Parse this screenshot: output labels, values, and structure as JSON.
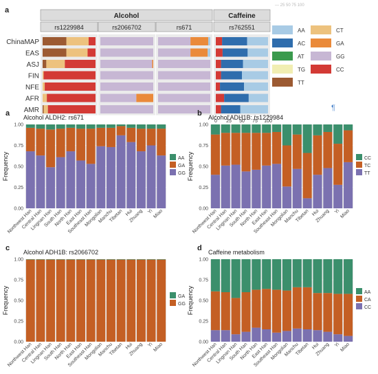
{
  "figure": {
    "top_panel": {
      "panel_letter": "a",
      "groups": [
        {
          "title": "Alcohol",
          "snps": [
            "rs1229984",
            "rs2066702",
            "rs671"
          ]
        },
        {
          "title": "Caffeine",
          "snps": [
            "rs762551"
          ]
        }
      ],
      "populations": [
        "ChinaMAP",
        "EAS",
        "ASJ",
        "FIN",
        "NFE",
        "AFR",
        "AMR"
      ],
      "x_ticks": [
        "0",
        "25",
        "50",
        "75",
        "100"
      ],
      "top_strip_ticks": "— 25   50   75  100",
      "legend": [
        {
          "label": "AA",
          "color": "#a8cbe5"
        },
        {
          "label": "AC",
          "color": "#2f6dad"
        },
        {
          "label": "AT",
          "color": "#3a9a4d"
        },
        {
          "label": "TG",
          "color": "#f1eeb2"
        },
        {
          "label": "TT",
          "color": "#9c5a32"
        },
        {
          "label": "CT",
          "color": "#edc27e"
        },
        {
          "label": "GA",
          "color": "#ea8a3a"
        },
        {
          "label": "GG",
          "color": "#c7b7d4"
        },
        {
          "label": "CC",
          "color": "#d33a35"
        }
      ],
      "corner_mark": "¶"
    },
    "bottom_panels": [
      {
        "letter": "a",
        "title": "Alcohol ALDH2: rs671",
        "ylabel": "Frequency",
        "legend": [
          {
            "label": "AA",
            "color": "#3b8f6c"
          },
          {
            "label": "GA",
            "color": "#c45f24"
          },
          {
            "label": "GG",
            "color": "#7b71b0"
          }
        ]
      },
      {
        "letter": "b",
        "title": "Alcohol ADH1B: rs1229984",
        "ylabel": "Frequency",
        "legend": [
          {
            "label": "CC",
            "color": "#3b8f6c"
          },
          {
            "label": "TC",
            "color": "#c45f24"
          },
          {
            "label": "TT",
            "color": "#7b71b0"
          }
        ]
      },
      {
        "letter": "c",
        "title": "Alcohol ADH1B: rs2066702",
        "ylabel": "Frequency",
        "legend": [
          {
            "label": "GA",
            "color": "#3b8f6c"
          },
          {
            "label": "GG",
            "color": "#c45f24"
          }
        ]
      },
      {
        "letter": "d",
        "title": "Caffeine metabolism",
        "ylabel": "Frequency",
        "legend": [
          {
            "label": "AA",
            "color": "#3b8f6c"
          },
          {
            "label": "CA",
            "color": "#c45f24"
          },
          {
            "label": "CC",
            "color": "#7b71b0"
          }
        ]
      }
    ],
    "y_ticks": [
      "0.00",
      "0.25",
      "0.50",
      "0.75",
      "1.00"
    ]
  },
  "chart_data": [
    {
      "type": "bar",
      "stacked": "horizontal-percent",
      "panel": "a",
      "group": "Alcohol",
      "facet": "rs1229984",
      "categories": [
        "ChinaMAP",
        "EAS",
        "ASJ",
        "FIN",
        "NFE",
        "AFR",
        "AMR"
      ],
      "xlim": [
        0,
        100
      ],
      "series": [
        {
          "name": "TT",
          "values": [
            45,
            45,
            7,
            0,
            0,
            0,
            2
          ]
        },
        {
          "name": "CT",
          "values": [
            42,
            40,
            35,
            2,
            4,
            8,
            8
          ]
        },
        {
          "name": "CC",
          "values": [
            13,
            15,
            58,
            98,
            96,
            92,
            90
          ]
        }
      ]
    },
    {
      "type": "bar",
      "stacked": "horizontal-percent",
      "panel": "a",
      "group": "Alcohol",
      "facet": "rs2066702",
      "categories": [
        "ChinaMAP",
        "EAS",
        "ASJ",
        "FIN",
        "NFE",
        "AFR",
        "AMR"
      ],
      "xlim": [
        0,
        100
      ],
      "series": [
        {
          "name": "GG",
          "values": [
            100,
            100,
            98,
            100,
            100,
            68,
            100
          ]
        },
        {
          "name": "GA",
          "values": [
            0,
            0,
            2,
            0,
            0,
            32,
            0
          ]
        }
      ]
    },
    {
      "type": "bar",
      "stacked": "horizontal-percent",
      "panel": "a",
      "group": "Alcohol",
      "facet": "rs671",
      "categories": [
        "ChinaMAP",
        "EAS",
        "ASJ",
        "FIN",
        "NFE",
        "AFR",
        "AMR"
      ],
      "xlim": [
        0,
        100
      ],
      "series": [
        {
          "name": "GG",
          "values": [
            62,
            62,
            100,
            100,
            100,
            100,
            100
          ]
        },
        {
          "name": "GA",
          "values": [
            34,
            33,
            0,
            0,
            0,
            0,
            0
          ]
        },
        {
          "name": "AA",
          "values": [
            4,
            5,
            0,
            0,
            0,
            0,
            0
          ]
        }
      ]
    },
    {
      "type": "bar",
      "stacked": "horizontal-percent",
      "panel": "a",
      "group": "Caffeine",
      "facet": "rs762551",
      "categories": [
        "ChinaMAP",
        "EAS",
        "ASJ",
        "FIN",
        "NFE",
        "AFR",
        "AMR"
      ],
      "xlim": [
        0,
        100
      ],
      "series": [
        {
          "name": "CC",
          "values": [
            12,
            13,
            10,
            10,
            8,
            16,
            10
          ]
        },
        {
          "name": "AC",
          "values": [
            48,
            48,
            42,
            40,
            46,
            47,
            37
          ]
        },
        {
          "name": "AA",
          "values": [
            40,
            39,
            48,
            50,
            46,
            37,
            53
          ]
        }
      ]
    },
    {
      "type": "bar",
      "stacked": "vertical-fraction",
      "panel": "a",
      "title": "Alcohol ALDH2: rs671",
      "ylabel": "Frequency",
      "ylim": [
        0,
        1
      ],
      "categories": [
        "Northwest Han",
        "Central Han",
        "Lingnan Han",
        "South Han",
        "North Han",
        "East Han",
        "Southeast Han",
        "Mongolian",
        "Manchu",
        "Tibetan",
        "Hui",
        "Zhuang",
        "Yi",
        "Miao"
      ],
      "series": [
        {
          "name": "GG",
          "values": [
            0.68,
            0.63,
            0.49,
            0.61,
            0.68,
            0.57,
            0.53,
            0.74,
            0.73,
            0.87,
            0.79,
            0.68,
            0.75,
            0.63
          ]
        },
        {
          "name": "GA",
          "values": [
            0.28,
            0.32,
            0.45,
            0.34,
            0.28,
            0.38,
            0.42,
            0.22,
            0.23,
            0.11,
            0.17,
            0.27,
            0.2,
            0.32
          ]
        },
        {
          "name": "AA",
          "values": [
            0.04,
            0.05,
            0.06,
            0.05,
            0.04,
            0.05,
            0.05,
            0.04,
            0.04,
            0.02,
            0.04,
            0.05,
            0.05,
            0.05
          ]
        }
      ]
    },
    {
      "type": "bar",
      "stacked": "vertical-fraction",
      "panel": "b",
      "title": "Alcohol ADH1B: rs1229984",
      "ylabel": "Frequency",
      "ylim": [
        0,
        1
      ],
      "categories": [
        "Northwest Han",
        "Central Han",
        "Lingnan Han",
        "South Han",
        "North Han",
        "East Han",
        "Southeast Han",
        "Mongolian",
        "Manchu",
        "Tibetan",
        "Hui",
        "Zhuang",
        "Yi",
        "Miao"
      ],
      "series": [
        {
          "name": "TT",
          "values": [
            0.4,
            0.51,
            0.52,
            0.44,
            0.46,
            0.51,
            0.53,
            0.26,
            0.47,
            0.12,
            0.4,
            0.48,
            0.28,
            0.55
          ]
        },
        {
          "name": "TC",
          "values": [
            0.48,
            0.39,
            0.38,
            0.46,
            0.44,
            0.39,
            0.38,
            0.49,
            0.41,
            0.54,
            0.47,
            0.43,
            0.49,
            0.38
          ]
        },
        {
          "name": "CC",
          "values": [
            0.12,
            0.1,
            0.1,
            0.1,
            0.1,
            0.1,
            0.09,
            0.25,
            0.12,
            0.34,
            0.13,
            0.09,
            0.23,
            0.07
          ]
        }
      ]
    },
    {
      "type": "bar",
      "stacked": "vertical-fraction",
      "panel": "c",
      "title": "Alcohol ADH1B: rs2066702",
      "ylabel": "Frequency",
      "ylim": [
        0,
        1
      ],
      "categories": [
        "Northwest Han",
        "Central Han",
        "Lingnan Han",
        "South Han",
        "North Han",
        "East Han",
        "Southeast Han",
        "Mongolian",
        "Manchu",
        "Tibetan",
        "Hui",
        "Zhuang",
        "Yi",
        "Miao"
      ],
      "series": [
        {
          "name": "GG",
          "values": [
            0.995,
            0.995,
            0.995,
            0.995,
            0.995,
            0.995,
            0.995,
            0.995,
            0.995,
            0.995,
            0.995,
            0.995,
            0.995,
            0.995
          ]
        },
        {
          "name": "GA",
          "values": [
            0.005,
            0.005,
            0.005,
            0.005,
            0.005,
            0.005,
            0.005,
            0.005,
            0.005,
            0.005,
            0.005,
            0.005,
            0.005,
            0.005
          ]
        }
      ]
    },
    {
      "type": "bar",
      "stacked": "vertical-fraction",
      "panel": "d",
      "title": "Caffeine metabolism",
      "ylabel": "Frequency",
      "ylim": [
        0,
        1
      ],
      "categories": [
        "Northwest Han",
        "Central Han",
        "Lingnan Han",
        "South Han",
        "North Han",
        "East Han",
        "Southeast Han",
        "Mongolian",
        "Manchu",
        "Tibetan",
        "Hui",
        "Zhuang",
        "Yi",
        "Miao"
      ],
      "series": [
        {
          "name": "CC",
          "values": [
            0.14,
            0.14,
            0.09,
            0.12,
            0.17,
            0.15,
            0.11,
            0.13,
            0.16,
            0.15,
            0.14,
            0.12,
            0.09,
            0.07
          ]
        },
        {
          "name": "CA",
          "values": [
            0.47,
            0.46,
            0.44,
            0.48,
            0.46,
            0.49,
            0.52,
            0.49,
            0.5,
            0.51,
            0.45,
            0.47,
            0.49,
            0.51
          ]
        },
        {
          "name": "AA",
          "values": [
            0.39,
            0.4,
            0.47,
            0.4,
            0.37,
            0.36,
            0.37,
            0.38,
            0.34,
            0.34,
            0.41,
            0.41,
            0.42,
            0.42
          ]
        }
      ]
    }
  ]
}
